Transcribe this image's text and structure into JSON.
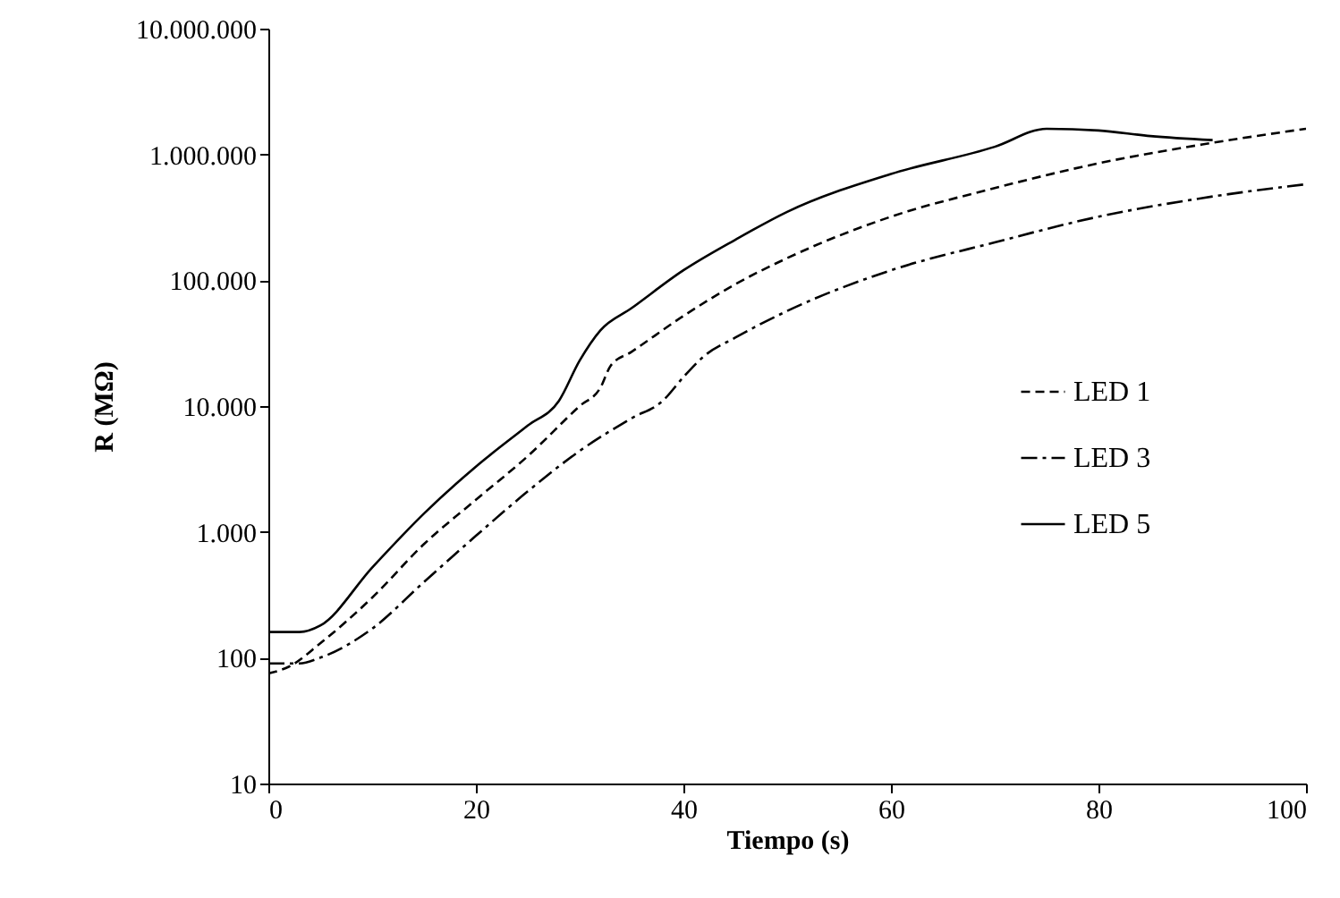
{
  "chart_data": {
    "type": "line",
    "xlabel": "Tiempo (s)",
    "ylabel": "R (MΩ)",
    "log": true,
    "grid": false,
    "legend": "right",
    "marker": "none",
    "xlim": [
      0,
      100
    ],
    "xticks": [
      0,
      20,
      40,
      60,
      80,
      100
    ],
    "ylim": [
      10,
      10000000
    ],
    "yticks": [
      {
        "value": 10,
        "label": "10"
      },
      {
        "value": 100,
        "label": "100"
      },
      {
        "value": 1000,
        "label": "1.000"
      },
      {
        "value": 10000,
        "label": "10.000"
      },
      {
        "value": 100000,
        "label": "100.000"
      },
      {
        "value": 1000000,
        "label": "1.000.000"
      },
      {
        "value": 10000000,
        "label": "10.000.000"
      }
    ],
    "series": [
      {
        "name": "LED 1",
        "color": "#000000",
        "line_style": "dashed",
        "x": [
          0,
          2,
          5,
          10,
          15,
          20,
          25,
          30,
          32,
          33,
          35,
          40,
          45,
          50,
          60,
          70,
          80,
          90,
          100
        ],
        "values": [
          75,
          85,
          130,
          300,
          800,
          1800,
          4000,
          10000,
          14000,
          21000,
          27000,
          52000,
          93000,
          150000,
          320000,
          540000,
          850000,
          1200000,
          1600000
        ]
      },
      {
        "name": "LED 3",
        "color": "#000000",
        "line_style": "dashdot",
        "x": [
          0,
          3,
          5,
          10,
          15,
          20,
          25,
          30,
          35,
          38,
          40,
          42,
          45,
          50,
          60,
          70,
          80,
          90,
          100
        ],
        "values": [
          90,
          90,
          100,
          170,
          400,
          930,
          2100,
          4400,
          8000,
          11000,
          17000,
          25000,
          35000,
          57000,
          120000,
          200000,
          320000,
          450000,
          580000
        ]
      },
      {
        "name": "LED 5",
        "color": "#000000",
        "line_style": "solid",
        "x": [
          0,
          3,
          5,
          10,
          15,
          20,
          25,
          28,
          30,
          32,
          35,
          40,
          45,
          50,
          60,
          70,
          75,
          80,
          85,
          91
        ],
        "values": [
          160,
          160,
          180,
          520,
          1400,
          3300,
          7000,
          11000,
          23000,
          40000,
          60000,
          120000,
          210000,
          350000,
          700000,
          1150000,
          1600000,
          1550000,
          1400000,
          1300000
        ]
      }
    ]
  }
}
